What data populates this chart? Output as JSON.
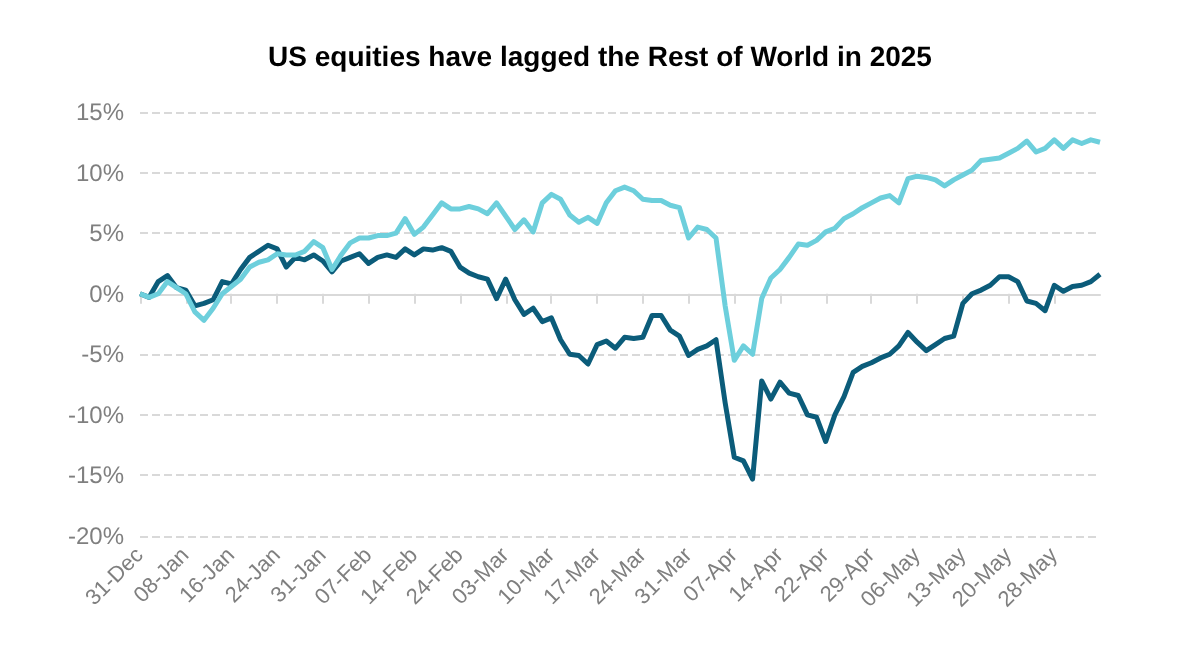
{
  "chart_data": {
    "type": "line",
    "title": "US equities have lagged the Rest of World in 2025",
    "categories": [
      "31-Dec",
      null,
      null,
      null,
      null,
      "08-Jan",
      null,
      null,
      null,
      null,
      "16-Jan",
      null,
      null,
      null,
      null,
      "24-Jan",
      null,
      null,
      null,
      null,
      "31-Jan",
      null,
      null,
      null,
      null,
      "07-Feb",
      null,
      null,
      null,
      null,
      "14-Feb",
      null,
      null,
      null,
      null,
      "24-Feb",
      null,
      null,
      null,
      null,
      "03-Mar",
      null,
      null,
      null,
      null,
      "10-Mar",
      null,
      null,
      null,
      null,
      "17-Mar",
      null,
      null,
      null,
      null,
      "24-Mar",
      null,
      null,
      null,
      null,
      "31-Mar",
      null,
      null,
      null,
      null,
      "07-Apr",
      null,
      null,
      null,
      null,
      "14-Apr",
      null,
      null,
      null,
      null,
      "22-Apr",
      null,
      null,
      null,
      null,
      "29-Apr",
      null,
      null,
      null,
      null,
      "06-May",
      null,
      null,
      null,
      null,
      "13-May",
      null,
      null,
      null,
      null,
      "20-May",
      null,
      null,
      null,
      null,
      "28-May",
      null,
      null,
      null,
      null,
      null
    ],
    "series": [
      {
        "color": "#0b5c7a",
        "values": [
          0,
          -0.3,
          1,
          1.5,
          0.5,
          0.3,
          -1,
          -0.8,
          -0.5,
          1,
          0.8,
          2,
          3,
          3.5,
          4,
          3.7,
          2.2,
          3,
          2.8,
          3.2,
          2.7,
          1.8,
          2.7,
          3,
          3.3,
          2.5,
          3,
          3.2,
          3,
          3.7,
          3.2,
          3.7,
          3.6,
          3.8,
          3.5,
          2.2,
          1.7,
          1.4,
          1.2,
          -0.4,
          1.2,
          -0.5,
          -1.7,
          -1.2,
          -2.3,
          -2,
          -3.8,
          -5,
          -5.1,
          -5.8,
          -4.2,
          -3.9,
          -4.5,
          -3.6,
          -3.7,
          -3.6,
          -1.8,
          -1.8,
          -3,
          -3.5,
          -5.1,
          -4.6,
          -4.3,
          -3.8,
          -9,
          -13.5,
          -13.8,
          -15.3,
          -7.2,
          -8.7,
          -7.3,
          -8.2,
          -8.4,
          -10,
          -10.2,
          -12.2,
          -10,
          -8.5,
          -6.5,
          -6,
          -5.7,
          -5.3,
          -5,
          -4.3,
          -3.2,
          -4,
          -4.7,
          -4.2,
          -3.7,
          -3.5,
          -0.8,
          0,
          0.3,
          0.7,
          1.4,
          1.4,
          1,
          -0.6,
          -0.8,
          -1.4,
          0.7,
          0.2,
          0.6,
          0.7,
          1,
          1.6
        ]
      },
      {
        "color": "#6dcfdc",
        "values": [
          0,
          -0.3,
          0,
          1,
          0.5,
          0,
          -1.5,
          -2.2,
          -1.2,
          0,
          0.6,
          1.2,
          2.2,
          2.6,
          2.8,
          3.3,
          3.2,
          3.2,
          3.5,
          4.3,
          3.8,
          2,
          3.2,
          4.2,
          4.6,
          4.6,
          4.8,
          4.8,
          5,
          6.2,
          4.9,
          5.5,
          6.5,
          7.5,
          7,
          7,
          7.2,
          7,
          6.6,
          7.5,
          6.4,
          5.3,
          6.1,
          5.1,
          7.5,
          8.2,
          7.8,
          6.5,
          5.9,
          6.3,
          5.8,
          7.5,
          8.5,
          8.8,
          8.5,
          7.8,
          7.7,
          7.7,
          7.3,
          7.1,
          4.6,
          5.5,
          5.3,
          4.6,
          -1,
          -5.5,
          -4.3,
          -5,
          -0.4,
          1.3,
          2,
          3,
          4.1,
          4,
          4.4,
          5.1,
          5.4,
          6.2,
          6.6,
          7.1,
          7.5,
          7.9,
          8.1,
          7.5,
          9.5,
          9.7,
          9.6,
          9.4,
          8.9,
          9.4,
          9.8,
          10.2,
          11,
          11.1,
          11.2,
          11.6,
          12,
          12.6,
          11.7,
          12,
          12.7,
          12,
          12.7,
          12.4,
          12.7,
          12.5
        ]
      }
    ],
    "ylim": [
      -20,
      15
    ],
    "yticks": [
      {
        "value": -20,
        "label": "-20%"
      },
      {
        "value": -15,
        "label": "-15%"
      },
      {
        "value": -10,
        "label": "-10%"
      },
      {
        "value": -5,
        "label": "-5%"
      },
      {
        "value": 0,
        "label": "0%"
      },
      {
        "value": 5,
        "label": "5%"
      },
      {
        "value": 10,
        "label": "10%"
      },
      {
        "value": 15,
        "label": "15%"
      }
    ],
    "grid": "y",
    "legend": false,
    "marker": "none",
    "line_style": "solid"
  }
}
